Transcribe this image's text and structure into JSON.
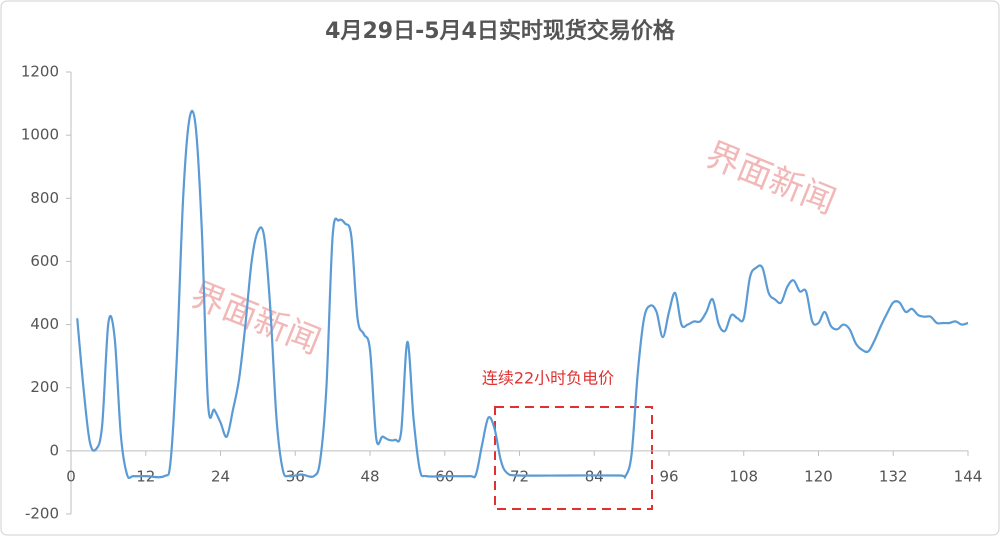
{
  "chart_data": {
    "type": "line",
    "title": "4月29日-5月4日实时现货交易价格",
    "x": [
      1,
      2,
      3,
      4,
      5,
      6,
      7,
      8,
      9,
      10,
      12,
      15,
      16,
      17,
      18,
      19,
      20,
      21,
      22,
      23,
      24,
      25,
      26,
      27,
      28,
      29,
      30,
      31,
      32,
      33,
      34,
      35,
      37,
      39,
      40,
      41,
      42,
      43,
      44,
      45,
      46,
      47,
      48,
      49,
      50,
      51,
      52,
      53,
      54,
      55,
      56,
      57,
      60,
      64,
      65,
      66,
      67,
      68,
      69,
      70,
      72,
      80,
      88,
      89,
      90,
      91,
      92,
      93,
      94,
      95,
      96,
      97,
      98,
      99,
      100,
      101,
      102,
      103,
      104,
      105,
      106,
      107,
      108,
      109,
      110,
      111,
      112,
      113,
      114,
      115,
      116,
      117,
      118,
      119,
      120,
      121,
      122,
      123,
      124,
      125,
      126,
      127,
      128,
      129,
      130,
      131,
      132,
      133,
      134,
      135,
      136,
      137,
      138,
      139,
      140,
      141,
      142,
      143,
      144
    ],
    "series": [
      {
        "name": "实时现货交易价格",
        "color": "#5b9bd5",
        "values": [
          420,
          200,
          30,
          5,
          80,
          405,
          360,
          50,
          -75,
          -80,
          -80,
          -80,
          -30,
          300,
          800,
          1050,
          1030,
          700,
          150,
          130,
          90,
          45,
          130,
          230,
          400,
          600,
          695,
          680,
          450,
          100,
          -60,
          -80,
          -75,
          -80,
          -30,
          200,
          680,
          730,
          720,
          680,
          420,
          370,
          320,
          40,
          45,
          35,
          35,
          60,
          345,
          100,
          -60,
          -80,
          -80,
          -80,
          -75,
          20,
          105,
          70,
          -30,
          -70,
          -78,
          -78,
          -78,
          -80,
          -10,
          250,
          420,
          460,
          440,
          360,
          440,
          500,
          400,
          400,
          410,
          410,
          440,
          480,
          400,
          380,
          430,
          420,
          420,
          550,
          580,
          580,
          500,
          480,
          470,
          520,
          540,
          505,
          505,
          410,
          405,
          440,
          395,
          385,
          400,
          385,
          340,
          320,
          315,
          350,
          395,
          435,
          470,
          470,
          440,
          450,
          430,
          425,
          425,
          405,
          405,
          405,
          410,
          400,
          405
        ]
      }
    ],
    "xlim": [
      0,
      144
    ],
    "xticks": [
      0,
      12,
      24,
      36,
      48,
      60,
      72,
      84,
      96,
      108,
      120,
      132,
      144
    ],
    "ylim": [
      -200,
      1200
    ],
    "yticks": [
      -200,
      0,
      200,
      400,
      600,
      800,
      1000,
      1200
    ],
    "annotation": "连续22小时负电价",
    "watermarks": [
      "界面新闻",
      "界面新闻"
    ]
  }
}
